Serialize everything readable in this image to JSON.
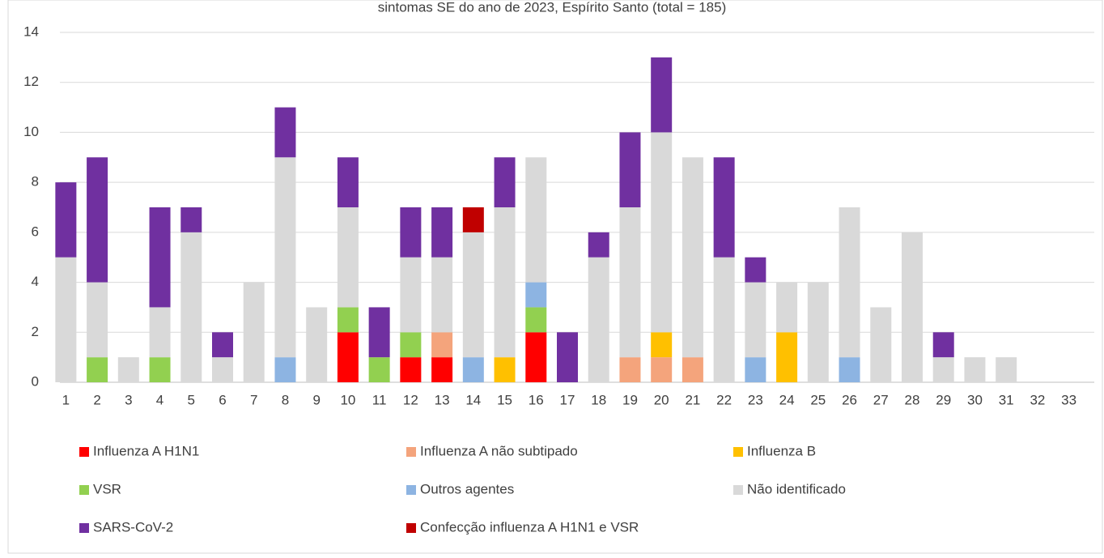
{
  "chart_data": {
    "type": "stacked_bar",
    "title": "sintomas SE do ano de 2023, Espírito Santo (total = 185)",
    "categories": [
      "1",
      "2",
      "3",
      "4",
      "5",
      "6",
      "7",
      "8",
      "9",
      "10",
      "11",
      "12",
      "13",
      "14",
      "15",
      "16",
      "17",
      "18",
      "19",
      "20",
      "21",
      "22",
      "23",
      "24",
      "25",
      "26",
      "27",
      "28",
      "29",
      "30",
      "31",
      "32",
      "33"
    ],
    "series": [
      {
        "name": "Influenza A H1N1",
        "color": "#ff0000",
        "values": [
          0,
          0,
          0,
          0,
          0,
          0,
          0,
          0,
          0,
          2,
          0,
          1,
          1,
          0,
          0,
          2,
          0,
          0,
          0,
          0,
          0,
          0,
          0,
          0,
          0,
          0,
          0,
          0,
          0,
          0,
          0,
          0,
          0
        ]
      },
      {
        "name": "Influenza A não subtipado",
        "color": "#f4a47c",
        "values": [
          0,
          0,
          0,
          0,
          0,
          0,
          0,
          0,
          0,
          0,
          0,
          0,
          1,
          0,
          0,
          0,
          0,
          0,
          1,
          1,
          1,
          0,
          0,
          0,
          0,
          0,
          0,
          0,
          0,
          0,
          0,
          0,
          0
        ]
      },
      {
        "name": "Influenza B",
        "color": "#ffc000",
        "values": [
          0,
          0,
          0,
          0,
          0,
          0,
          0,
          0,
          0,
          0,
          0,
          0,
          0,
          0,
          1,
          0,
          0,
          0,
          0,
          1,
          0,
          0,
          0,
          2,
          0,
          0,
          0,
          0,
          0,
          0,
          0,
          0,
          0
        ]
      },
      {
        "name": "VSR",
        "color": "#92d050",
        "values": [
          0,
          1,
          0,
          1,
          0,
          0,
          0,
          0,
          0,
          1,
          1,
          1,
          0,
          0,
          0,
          1,
          0,
          0,
          0,
          0,
          0,
          0,
          0,
          0,
          0,
          0,
          0,
          0,
          0,
          0,
          0,
          0,
          0
        ]
      },
      {
        "name": "Outros agentes",
        "color": "#8db4e2",
        "values": [
          0,
          0,
          0,
          0,
          0,
          0,
          0,
          1,
          0,
          0,
          0,
          0,
          0,
          1,
          0,
          1,
          0,
          0,
          0,
          0,
          0,
          0,
          1,
          0,
          0,
          1,
          0,
          0,
          0,
          0,
          0,
          0,
          0
        ]
      },
      {
        "name": "Não identificado",
        "color": "#d9d9d9",
        "values": [
          5,
          3,
          1,
          2,
          6,
          1,
          4,
          8,
          3,
          4,
          0,
          3,
          3,
          5,
          6,
          5,
          0,
          5,
          6,
          8,
          8,
          5,
          3,
          2,
          4,
          6,
          3,
          6,
          1,
          1,
          1,
          0,
          0
        ]
      },
      {
        "name": "SARS-CoV-2",
        "color": "#7030a0",
        "values": [
          3,
          5,
          0,
          4,
          1,
          1,
          0,
          2,
          0,
          2,
          2,
          2,
          2,
          0,
          2,
          0,
          2,
          1,
          3,
          3,
          0,
          4,
          1,
          0,
          0,
          0,
          0,
          0,
          1,
          0,
          0,
          0,
          0
        ]
      },
      {
        "name": "Confecção influenza A H1N1 e VSR",
        "color": "#c00000",
        "values": [
          0,
          0,
          0,
          0,
          0,
          0,
          0,
          0,
          0,
          0,
          0,
          0,
          0,
          1,
          0,
          0,
          0,
          0,
          0,
          0,
          0,
          0,
          0,
          0,
          0,
          0,
          0,
          0,
          0,
          0,
          0,
          0,
          0
        ]
      }
    ],
    "ylim": [
      0,
      14
    ],
    "yticks": [
      0,
      2,
      4,
      6,
      8,
      10,
      12,
      14
    ],
    "grid": true,
    "legend": "bottom"
  }
}
